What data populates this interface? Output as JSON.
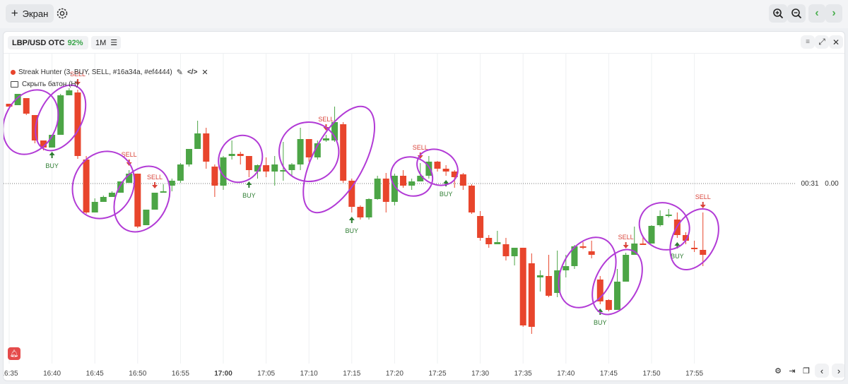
{
  "toolbar": {
    "add_screen_label": "Экран",
    "zoom_in": "zoom-in-icon",
    "zoom_out": "zoom-out-icon",
    "nav_back": "chevron-left-icon",
    "nav_forward": "chevron-right-icon"
  },
  "chart_header": {
    "pair": "LBP/USD OTC",
    "payout": "92%",
    "timeframe": "1M"
  },
  "indicator": {
    "label": "Streak Hunter (3, BUY, SELL, #16a34a, #ef4444)",
    "hide_buttons_label": "Скрыть батон (H)"
  },
  "price_line": {
    "countdown": "00:31",
    "price": "0.00"
  },
  "x_ticks": [
    "16:35",
    "16:40",
    "16:45",
    "16:50",
    "16:55",
    "17:00",
    "17:05",
    "17:10",
    "17:15",
    "17:20",
    "17:25",
    "17:30",
    "17:35",
    "17:40",
    "17:45",
    "17:50",
    "17:55"
  ],
  "signal_labels": {
    "buy": "BUY",
    "sell": "SELL"
  },
  "colors": {
    "bull": "#4ca546",
    "bear": "#e8452c",
    "buy_text": "#2e7d32",
    "sell_text": "#d9443a",
    "ellipse": "#b23bd6",
    "payout": "#3aa54a"
  },
  "chart_data": {
    "type": "candlestick",
    "x": [
      "16:35",
      "16:36",
      "16:37",
      "16:38",
      "16:39",
      "16:40",
      "16:41",
      "16:42",
      "16:43",
      "16:44",
      "16:45",
      "16:46",
      "16:47",
      "16:48",
      "16:49",
      "16:50",
      "16:51",
      "16:52",
      "16:53",
      "16:54",
      "16:55",
      "16:56",
      "16:57",
      "16:58",
      "16:59",
      "17:00",
      "17:01",
      "17:02",
      "17:03",
      "17:04",
      "17:05",
      "17:06",
      "17:07",
      "17:08",
      "17:09",
      "17:10",
      "17:11",
      "17:12",
      "17:13",
      "17:14",
      "17:15",
      "17:16",
      "17:17",
      "17:18",
      "17:19",
      "17:20",
      "17:21",
      "17:22",
      "17:23",
      "17:24",
      "17:25",
      "17:26",
      "17:27",
      "17:28",
      "17:29",
      "17:30",
      "17:31",
      "17:32",
      "17:33",
      "17:34",
      "17:35",
      "17:36",
      "17:37",
      "17:38",
      "17:39",
      "17:40",
      "17:41",
      "17:42",
      "17:43",
      "17:44",
      "17:45",
      "17:46",
      "17:47",
      "17:48",
      "17:49",
      "17:50",
      "17:51",
      "17:52",
      "17:53",
      "17:54",
      "17:55",
      "17:56"
    ],
    "ohlc": [
      [
        146,
        146,
        150,
        148
      ],
      [
        148,
        138,
        132,
        138
      ],
      [
        138,
        138,
        160,
        162
      ],
      [
        162,
        162,
        198,
        202
      ],
      [
        198,
        198,
        208,
        212
      ],
      [
        208,
        208,
        190,
        192
      ],
      [
        190,
        190,
        134,
        132
      ],
      [
        134,
        124,
        127,
        134
      ],
      [
        130,
        126,
        220,
        224
      ],
      [
        225,
        220,
        300,
        302
      ],
      [
        300,
        280,
        285,
        300
      ],
      [
        285,
        276,
        278,
        285
      ],
      [
        278,
        270,
        272,
        278
      ],
      [
        272,
        258,
        256,
        270
      ],
      [
        258,
        240,
        245,
        256
      ],
      [
        245,
        245,
        320,
        322
      ],
      [
        318,
        314,
        296,
        318
      ],
      [
        296,
        295,
        272,
        296
      ],
      [
        272,
        260,
        270,
        272
      ],
      [
        262,
        252,
        255,
        270
      ],
      [
        255,
        230,
        232,
        258
      ],
      [
        232,
        212,
        210,
        235
      ],
      [
        210,
        170,
        188,
        192
      ],
      [
        188,
        180,
        228,
        238
      ],
      [
        235,
        232,
        262,
        278
      ],
      [
        262,
        220,
        222,
        268
      ],
      [
        220,
        198,
        217,
        225
      ],
      [
        217,
        214,
        220,
        232
      ],
      [
        220,
        220,
        240,
        250
      ],
      [
        242,
        232,
        233,
        252
      ],
      [
        233,
        222,
        242,
        250
      ],
      [
        242,
        220,
        232,
        262
      ],
      [
        242,
        200,
        240,
        255
      ],
      [
        240,
        230,
        232,
        248
      ],
      [
        232,
        180,
        196,
        240
      ],
      [
        196,
        196,
        222,
        228
      ],
      [
        222,
        198,
        202,
        225
      ],
      [
        198,
        190,
        195,
        200
      ],
      [
        198,
        150,
        172,
        200
      ],
      [
        175,
        172,
        255,
        258
      ],
      [
        255,
        252,
        292,
        300
      ],
      [
        292,
        290,
        307,
        310
      ],
      [
        307,
        280,
        281,
        310
      ],
      [
        281,
        248,
        252,
        282
      ],
      [
        252,
        244,
        285,
        300
      ],
      [
        285,
        245,
        248,
        290
      ],
      [
        248,
        240,
        262,
        265
      ],
      [
        262,
        252,
        256,
        268
      ],
      [
        256,
        230,
        248,
        252
      ],
      [
        248,
        220,
        228,
        252
      ],
      [
        228,
        227,
        238,
        242
      ],
      [
        238,
        233,
        242,
        248
      ],
      [
        242,
        240,
        250,
        265
      ],
      [
        246,
        244,
        262,
        268
      ],
      [
        262,
        260,
        300,
        302
      ],
      [
        305,
        298,
        336,
        340
      ],
      [
        336,
        332,
        345,
        350
      ],
      [
        345,
        326,
        342,
        342
      ],
      [
        345,
        336,
        362,
        368
      ],
      [
        362,
        356,
        350,
        375
      ],
      [
        350,
        350,
        460,
        462
      ],
      [
        372,
        358,
        462,
        472
      ],
      [
        392,
        382,
        389,
        412
      ],
      [
        390,
        360,
        418,
        420
      ],
      [
        414,
        354,
        382,
        420
      ],
      [
        382,
        360,
        376,
        392
      ],
      [
        376,
        346,
        348,
        380
      ],
      [
        348,
        342,
        350,
        352
      ],
      [
        355,
        340,
        360,
        365
      ],
      [
        395,
        390,
        426,
        430
      ],
      [
        424,
        423,
        438,
        440
      ],
      [
        438,
        380,
        398,
        400
      ],
      [
        398,
        357,
        360,
        363
      ],
      [
        360,
        320,
        344,
        348
      ],
      [
        344,
        334,
        344,
        346
      ],
      [
        344,
        318,
        319,
        322
      ],
      [
        318,
        297,
        305,
        320
      ],
      [
        305,
        295,
        303,
        307
      ],
      [
        310,
        300,
        332,
        336
      ],
      [
        332,
        328,
        340,
        345
      ],
      [
        350,
        340,
        350,
        356
      ],
      [
        353,
        300,
        360,
        376
      ]
    ],
    "signals": [
      {
        "type": "BUY",
        "index": 5
      },
      {
        "type": "SELL",
        "index": 8
      },
      {
        "type": "SELL",
        "index": 14
      },
      {
        "type": "SELL",
        "index": 17
      },
      {
        "type": "BUY",
        "index": 28
      },
      {
        "type": "SELL",
        "index": 37
      },
      {
        "type": "BUY",
        "index": 40
      },
      {
        "type": "SELL",
        "index": 48
      },
      {
        "type": "BUY",
        "index": 51
      },
      {
        "type": "BUY",
        "index": 69
      },
      {
        "type": "SELL",
        "index": 72
      },
      {
        "type": "BUY",
        "index": 78
      },
      {
        "type": "SELL",
        "index": 81
      }
    ]
  }
}
